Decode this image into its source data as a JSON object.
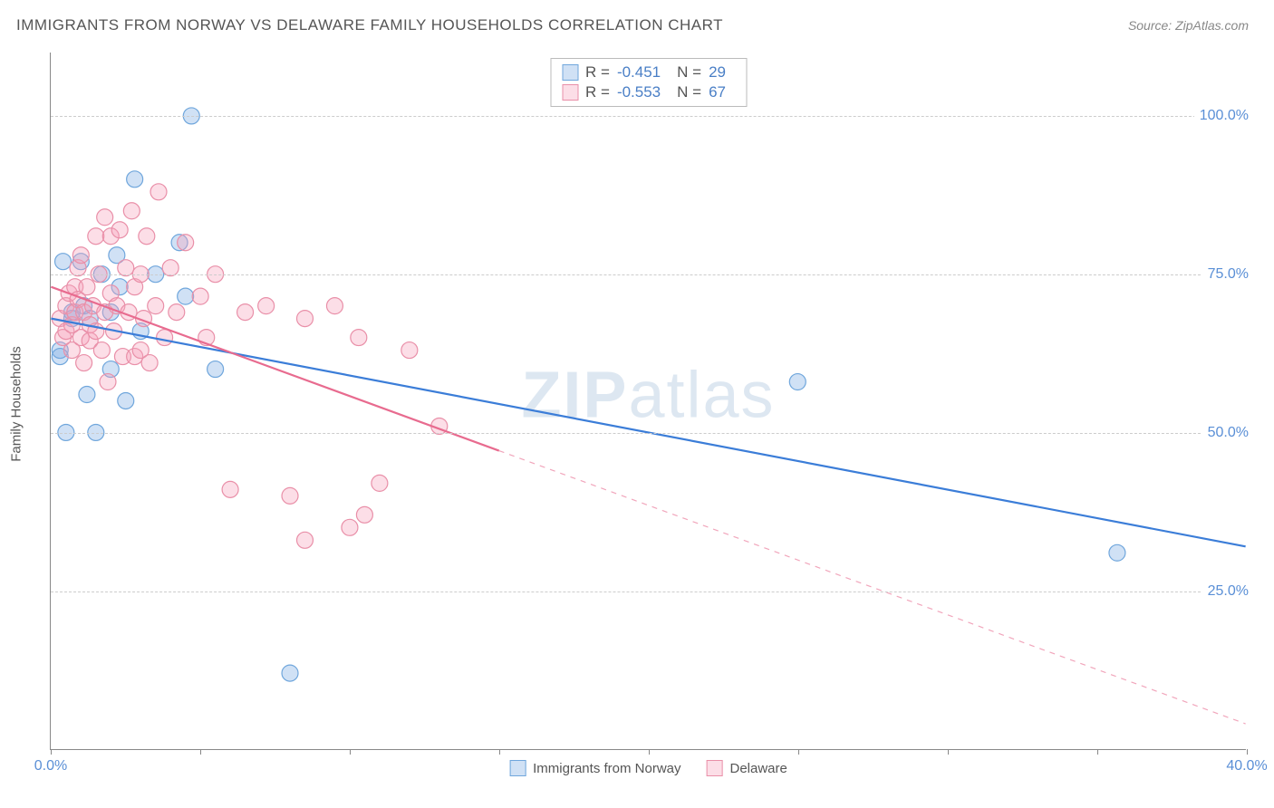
{
  "title": "IMMIGRANTS FROM NORWAY VS DELAWARE FAMILY HOUSEHOLDS CORRELATION CHART",
  "source": "Source: ZipAtlas.com",
  "ylabel": "Family Households",
  "watermark_a": "ZIP",
  "watermark_b": "atlas",
  "chart": {
    "type": "scatter-correlation",
    "xlim": [
      0,
      40
    ],
    "ylim": [
      0,
      110
    ],
    "yticks": [
      {
        "v": 25,
        "label": "25.0%"
      },
      {
        "v": 50,
        "label": "50.0%"
      },
      {
        "v": 75,
        "label": "75.0%"
      },
      {
        "v": 100,
        "label": "100.0%"
      }
    ],
    "xticks": [
      0,
      5,
      10,
      15,
      20,
      25,
      30,
      35,
      40
    ],
    "xlabels": [
      {
        "v": 0,
        "label": "0.0%"
      },
      {
        "v": 40,
        "label": "40.0%"
      }
    ],
    "grid_color": "#cccccc",
    "background_color": "#ffffff",
    "point_radius": 9,
    "point_stroke_width": 1.2,
    "series": [
      {
        "name": "Immigrants from Norway",
        "fill": "rgba(120,170,225,0.35)",
        "stroke": "#6fa6dc",
        "trend_color": "#3b7dd8",
        "trend_width": 2.2,
        "R": "-0.451",
        "N": "29",
        "trend": {
          "x1": 0,
          "y1": 68,
          "x2": 40,
          "y2": 32,
          "solid_to_x": 40
        },
        "points": [
          [
            0.3,
            63
          ],
          [
            0.3,
            62
          ],
          [
            0.4,
            77
          ],
          [
            0.5,
            50
          ],
          [
            0.7,
            68
          ],
          [
            0.7,
            69
          ],
          [
            1.0,
            77
          ],
          [
            1.1,
            70
          ],
          [
            1.2,
            56
          ],
          [
            1.3,
            68
          ],
          [
            1.5,
            50
          ],
          [
            1.7,
            75
          ],
          [
            2.0,
            69
          ],
          [
            2.0,
            60
          ],
          [
            2.2,
            78
          ],
          [
            2.3,
            73
          ],
          [
            2.5,
            55
          ],
          [
            2.8,
            90
          ],
          [
            3.0,
            66
          ],
          [
            3.5,
            75
          ],
          [
            4.3,
            80
          ],
          [
            4.5,
            71.5
          ],
          [
            4.7,
            100
          ],
          [
            5.5,
            60
          ],
          [
            8.0,
            12
          ],
          [
            25.0,
            58
          ],
          [
            35.7,
            31
          ]
        ]
      },
      {
        "name": "Delaware",
        "fill": "rgba(245,160,185,0.35)",
        "stroke": "#e98fa8",
        "trend_color": "#e86b8f",
        "trend_width": 2.2,
        "R": "-0.553",
        "N": "67",
        "trend": {
          "x1": 0,
          "y1": 73,
          "x2": 40,
          "y2": 4,
          "solid_to_x": 15
        },
        "points": [
          [
            0.3,
            68
          ],
          [
            0.4,
            65
          ],
          [
            0.5,
            70
          ],
          [
            0.5,
            66
          ],
          [
            0.6,
            72
          ],
          [
            0.7,
            67
          ],
          [
            0.7,
            63
          ],
          [
            0.8,
            69
          ],
          [
            0.8,
            73
          ],
          [
            0.9,
            76
          ],
          [
            0.9,
            71
          ],
          [
            1.0,
            65
          ],
          [
            1.0,
            78
          ],
          [
            1.1,
            69
          ],
          [
            1.1,
            61
          ],
          [
            1.2,
            73
          ],
          [
            1.3,
            67
          ],
          [
            1.3,
            64.5
          ],
          [
            1.4,
            70
          ],
          [
            1.5,
            66
          ],
          [
            1.5,
            81
          ],
          [
            1.6,
            75
          ],
          [
            1.7,
            63
          ],
          [
            1.8,
            69
          ],
          [
            1.8,
            84
          ],
          [
            1.9,
            58
          ],
          [
            2.0,
            72
          ],
          [
            2.0,
            81
          ],
          [
            2.1,
            66
          ],
          [
            2.2,
            70
          ],
          [
            2.3,
            82
          ],
          [
            2.4,
            62
          ],
          [
            2.5,
            76
          ],
          [
            2.6,
            69
          ],
          [
            2.7,
            85
          ],
          [
            2.8,
            62
          ],
          [
            2.8,
            73
          ],
          [
            3.0,
            63
          ],
          [
            3.0,
            75
          ],
          [
            3.1,
            68
          ],
          [
            3.2,
            81
          ],
          [
            3.3,
            61
          ],
          [
            3.5,
            70
          ],
          [
            3.6,
            88
          ],
          [
            3.8,
            65
          ],
          [
            4.0,
            76
          ],
          [
            4.2,
            69
          ],
          [
            4.5,
            80
          ],
          [
            5.0,
            71.5
          ],
          [
            5.2,
            65
          ],
          [
            5.5,
            75
          ],
          [
            6.0,
            41
          ],
          [
            6.5,
            69
          ],
          [
            7.2,
            70
          ],
          [
            8.0,
            40
          ],
          [
            8.5,
            68
          ],
          [
            8.5,
            33
          ],
          [
            9.5,
            70
          ],
          [
            10.0,
            35
          ],
          [
            10.3,
            65
          ],
          [
            10.5,
            37
          ],
          [
            11.0,
            42
          ],
          [
            12.0,
            63
          ],
          [
            13.0,
            51
          ]
        ]
      }
    ],
    "legend": {
      "position": "top-center",
      "bottom_position": "bottom-center"
    }
  }
}
